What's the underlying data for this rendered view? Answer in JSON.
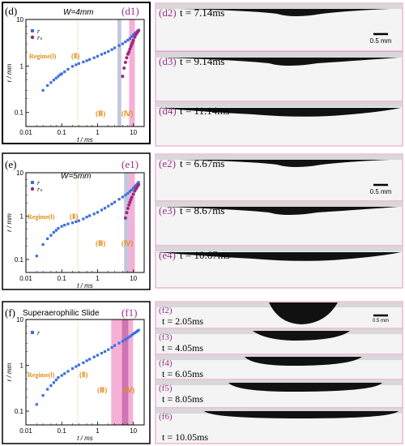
{
  "colors": {
    "blue": "#3b6fe0",
    "purple": "#a0287a",
    "pink_band": "#ec6fb4",
    "grey_band": "#9aa2c8",
    "label_orange": "#e0901c",
    "frame_pink": "#e8a6cc",
    "panel_label_purple": "#9a2f8a"
  },
  "panels": [
    {
      "id": "d",
      "label": "(d)",
      "inset": "(d1)",
      "title": "W=4mm",
      "legend": [
        "r",
        "rₛ"
      ],
      "ylabel": "r / mm",
      "xlabel": "t / ms",
      "xticks": [
        "0.01",
        "0.1",
        "1",
        "10"
      ],
      "yticks": [
        "0.1",
        "1",
        "10"
      ],
      "regimes": [
        "Regime(Ⅰ)",
        "(Ⅱ)",
        "(Ⅲ)",
        "(Ⅳ)"
      ],
      "frames": [
        {
          "label": "(d2)",
          "time": "t = 7.14ms",
          "scale": "0.5 mm"
        },
        {
          "label": "(d3)",
          "time": "t = 9.14ms"
        },
        {
          "label": "(d4)",
          "time": "t = 11.14ms"
        }
      ]
    },
    {
      "id": "e",
      "label": "(e)",
      "inset": "(e1)",
      "title": "W=5mm",
      "legend": [
        "r",
        "rₛ"
      ],
      "ylabel": "r / mm",
      "xlabel": "t / ms",
      "xticks": [
        "0.01",
        "0.1",
        "1",
        "10"
      ],
      "yticks": [
        "0.1",
        "1",
        "10"
      ],
      "regimes": [
        "Regime(Ⅰ)",
        "(Ⅱ)",
        "(Ⅲ)",
        "(Ⅳ)"
      ],
      "frames": [
        {
          "label": "(e2)",
          "time": "t = 6.67ms",
          "scale": "0.5 mm"
        },
        {
          "label": "(e3)",
          "time": "t = 8.67ms"
        },
        {
          "label": "(e4)",
          "time": "t = 10.67ms"
        }
      ]
    },
    {
      "id": "f",
      "label": "(f)",
      "inset": "(f1)",
      "title": "Superaerophilic Slide",
      "legend": [
        "r"
      ],
      "ylabel": "r / mm",
      "xlabel": "t / ms",
      "xticks": [
        "0.01",
        "0.1",
        "1",
        "10"
      ],
      "yticks": [
        "0.1",
        "1",
        "10"
      ],
      "regimes": [
        "Regime(Ⅰ)",
        "(Ⅱ)",
        "(Ⅲ)",
        "(Ⅳ)"
      ],
      "frames": [
        {
          "label": "(f2)",
          "time": "t = 2.05ms",
          "scale": "0.5 mm"
        },
        {
          "label": "(f3)",
          "time": "t = 4.05ms"
        },
        {
          "label": "(f4)",
          "time": "t = 6.05ms"
        },
        {
          "label": "(f5)",
          "time": "t = 8.05ms"
        },
        {
          "label": "(f6)",
          "time": "t = 10.05ms"
        }
      ]
    }
  ],
  "chart_data": [
    {
      "type": "scatter",
      "title": "W=4mm",
      "xlabel": "t / ms",
      "ylabel": "r / mm",
      "xscale": "log",
      "yscale": "log",
      "xlim": [
        0.01,
        20
      ],
      "ylim": [
        0.05,
        10
      ],
      "series": [
        {
          "name": "r",
          "x": [
            0.03,
            0.04,
            0.05,
            0.06,
            0.07,
            0.08,
            0.09,
            0.1,
            0.12,
            0.15,
            0.2,
            0.25,
            0.3,
            0.4,
            0.5,
            0.6,
            0.8,
            1,
            1.3,
            1.6,
            2,
            2.5,
            3,
            4,
            5,
            6,
            7,
            8,
            9,
            10,
            11,
            12,
            13,
            14
          ],
          "y": [
            0.3,
            0.38,
            0.44,
            0.5,
            0.55,
            0.6,
            0.65,
            0.68,
            0.75,
            0.85,
            0.98,
            1.06,
            1.13,
            1.22,
            1.3,
            1.38,
            1.5,
            1.62,
            1.78,
            1.9,
            2.05,
            2.25,
            2.45,
            2.75,
            3.0,
            3.3,
            3.6,
            3.9,
            4.3,
            4.7,
            5.0,
            5.3,
            5.6,
            5.9
          ]
        },
        {
          "name": "rₛ",
          "x": [
            5,
            5.5,
            6,
            6.5,
            7,
            7.5,
            8,
            8.5,
            9,
            9.5,
            10,
            11,
            12,
            13,
            14
          ],
          "y": [
            0.6,
            0.9,
            1.2,
            1.5,
            1.8,
            2.0,
            2.3,
            2.6,
            2.9,
            3.2,
            3.6,
            4.2,
            4.8,
            5.3,
            5.8
          ]
        }
      ]
    },
    {
      "type": "scatter",
      "title": "W=5mm",
      "xlabel": "t / ms",
      "ylabel": "r / mm",
      "xscale": "log",
      "yscale": "log",
      "xlim": [
        0.01,
        20
      ],
      "ylim": [
        0.05,
        10
      ],
      "series": [
        {
          "name": "r",
          "x": [
            0.02,
            0.03,
            0.04,
            0.05,
            0.06,
            0.07,
            0.08,
            0.1,
            0.12,
            0.15,
            0.2,
            0.25,
            0.3,
            0.4,
            0.5,
            0.6,
            0.8,
            1,
            1.3,
            1.6,
            2,
            2.5,
            3,
            4,
            5,
            6,
            7,
            8,
            9,
            10,
            11,
            12,
            13,
            14
          ],
          "y": [
            0.12,
            0.22,
            0.3,
            0.36,
            0.42,
            0.47,
            0.52,
            0.58,
            0.62,
            0.66,
            0.7,
            0.74,
            0.78,
            0.86,
            0.95,
            1.02,
            1.12,
            1.22,
            1.38,
            1.52,
            1.7,
            1.9,
            2.1,
            2.45,
            2.75,
            3.05,
            3.35,
            3.7,
            4.0,
            4.4,
            4.8,
            5.2,
            5.6,
            6.0
          ]
        },
        {
          "name": "rₛ",
          "x": [
            6,
            6.5,
            7,
            7.5,
            8,
            8.5,
            9,
            10,
            11,
            12,
            13,
            14
          ],
          "y": [
            0.9,
            1.2,
            1.5,
            1.8,
            2.1,
            2.4,
            2.7,
            3.2,
            3.8,
            4.3,
            4.8,
            5.3
          ]
        }
      ]
    },
    {
      "type": "scatter",
      "title": "Superaerophilic Slide",
      "xlabel": "t / ms",
      "ylabel": "r / mm",
      "xscale": "log",
      "yscale": "log",
      "xlim": [
        0.01,
        20
      ],
      "ylim": [
        0.05,
        10
      ],
      "series": [
        {
          "name": "r",
          "x": [
            0.02,
            0.03,
            0.04,
            0.05,
            0.06,
            0.07,
            0.08,
            0.1,
            0.12,
            0.15,
            0.2,
            0.25,
            0.3,
            0.4,
            0.5,
            0.6,
            0.8,
            1,
            1.3,
            1.6,
            2,
            2.5,
            3,
            4,
            5,
            6,
            7,
            8,
            9,
            10,
            11,
            12,
            13,
            14
          ],
          "y": [
            0.14,
            0.22,
            0.3,
            0.36,
            0.42,
            0.48,
            0.54,
            0.6,
            0.66,
            0.74,
            0.85,
            0.94,
            1.02,
            1.14,
            1.26,
            1.36,
            1.52,
            1.66,
            1.84,
            2.0,
            2.2,
            2.45,
            2.7,
            3.05,
            3.35,
            3.65,
            3.95,
            4.25,
            4.55,
            4.85,
            5.1,
            5.35,
            5.6,
            5.85
          ]
        }
      ]
    }
  ]
}
